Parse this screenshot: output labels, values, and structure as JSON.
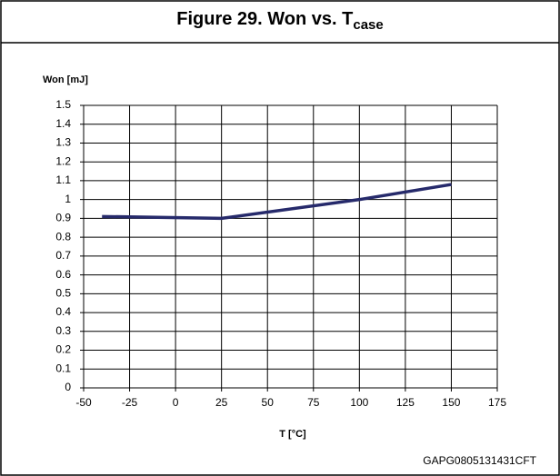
{
  "chart_data": {
    "type": "line",
    "title": "Figure 29. Won vs. T",
    "title_subscript": "case",
    "y_label": "Won [mJ]",
    "x_label": "T [°C]",
    "footnote": "GAPG0805131431CFT",
    "x": [
      -40,
      25,
      100,
      150
    ],
    "series": [
      {
        "name": "Won",
        "color": "#262a6b",
        "values": [
          0.91,
          0.9,
          1.0,
          1.08
        ]
      }
    ],
    "xlim": [
      -50,
      175
    ],
    "xticks": [
      -50,
      -25,
      0,
      25,
      50,
      75,
      100,
      125,
      150,
      175
    ],
    "ylim": [
      0,
      1.5
    ],
    "yticks": [
      0,
      0.1,
      0.2,
      0.3,
      0.4,
      0.5,
      0.6,
      0.7,
      0.8,
      0.9,
      1,
      1.1,
      1.2,
      1.3,
      1.4,
      1.5
    ],
    "grid": true
  }
}
